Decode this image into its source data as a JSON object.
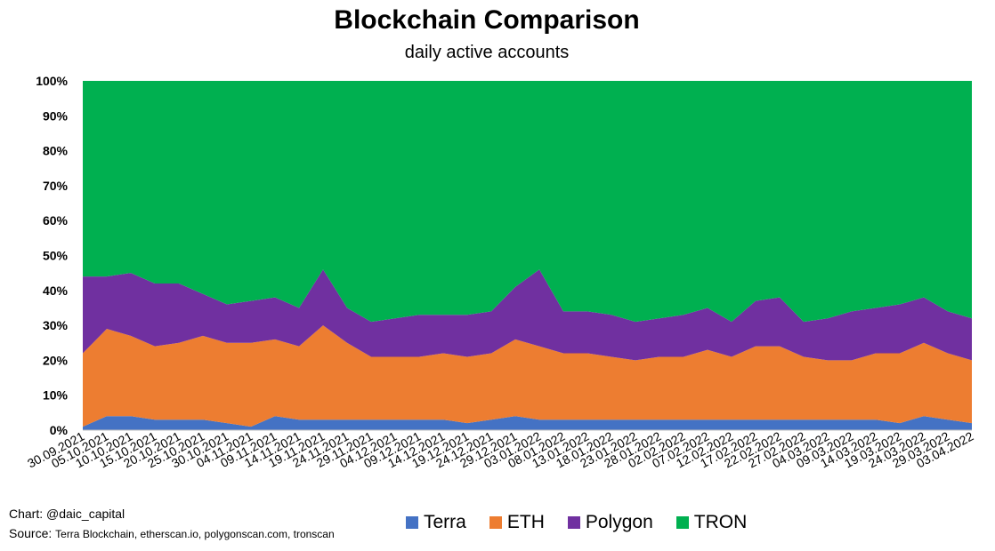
{
  "title": "Blockchain Comparison",
  "subtitle": "daily active accounts",
  "credits": {
    "chart_label": "Chart: @daic_capital",
    "source_label": "Source:",
    "source_text": "Terra Blockchain, etherscan.io, polygonscan.com, tronscan"
  },
  "colors": {
    "Terra": "#4472C4",
    "ETH": "#ED7D31",
    "Polygon": "#7030A0",
    "TRON": "#00B050"
  },
  "chart_data": {
    "type": "area",
    "stacked": true,
    "percent": true,
    "title": "Blockchain Comparison",
    "subtitle": "daily active accounts",
    "ylim": [
      0,
      100
    ],
    "y_ticks": [
      "0%",
      "10%",
      "20%",
      "30%",
      "40%",
      "50%",
      "60%",
      "70%",
      "80%",
      "90%",
      "100%"
    ],
    "x_tick_labels": [
      "30.09.2021",
      "05.10.2021",
      "10.10.2021",
      "15.10.2021",
      "20.10.2021",
      "25.10.2021",
      "30.10.2021",
      "04.11.2021",
      "09.11.2021",
      "14.11.2021",
      "19.11.2021",
      "24.11.2021",
      "29.11.2021",
      "04.12.2021",
      "09.12.2021",
      "14.12.2021",
      "19.12.2021",
      "24.12.2021",
      "29.12.2021",
      "03.01.2022",
      "08.01.2022",
      "13.01.2022",
      "18.01.2022",
      "23.01.2022",
      "28.01.2022",
      "02.02.2022",
      "07.02.2022",
      "12.02.2022",
      "17.02.2022",
      "22.02.2022",
      "27.02.2022",
      "04.03.2022",
      "09.03.2022",
      "14.03.2022",
      "19.03.2022",
      "24.03.2022",
      "29.03.2022",
      "03.04.2022"
    ],
    "legend_position": "bottom",
    "grid": false,
    "x": [
      "30.09.2021",
      "05.10.2021",
      "10.10.2021",
      "15.10.2021",
      "20.10.2021",
      "25.10.2021",
      "30.10.2021",
      "04.11.2021",
      "09.11.2021",
      "14.11.2021",
      "19.11.2021",
      "24.11.2021",
      "29.11.2021",
      "04.12.2021",
      "09.12.2021",
      "14.12.2021",
      "19.12.2021",
      "24.12.2021",
      "29.12.2021",
      "03.01.2022",
      "08.01.2022",
      "13.01.2022",
      "18.01.2022",
      "23.01.2022",
      "28.01.2022",
      "02.02.2022",
      "07.02.2022",
      "12.02.2022",
      "17.02.2022",
      "22.02.2022",
      "27.02.2022",
      "04.03.2022",
      "09.03.2022",
      "14.03.2022",
      "19.03.2022",
      "24.03.2022",
      "29.03.2022",
      "03.04.2022"
    ],
    "series": [
      {
        "name": "Terra",
        "values": [
          1,
          4,
          4,
          3,
          3,
          3,
          2,
          1,
          4,
          3,
          3,
          3,
          3,
          3,
          3,
          3,
          2,
          3,
          4,
          3,
          3,
          3,
          3,
          3,
          3,
          3,
          3,
          3,
          3,
          3,
          3,
          3,
          3,
          3,
          2,
          4,
          3,
          2
        ]
      },
      {
        "name": "ETH",
        "values": [
          21,
          25,
          23,
          21,
          22,
          24,
          23,
          24,
          22,
          21,
          27,
          22,
          18,
          18,
          18,
          19,
          19,
          19,
          22,
          21,
          19,
          19,
          18,
          17,
          18,
          18,
          20,
          18,
          21,
          21,
          18,
          17,
          17,
          19,
          20,
          21,
          19,
          18
        ]
      },
      {
        "name": "Polygon",
        "values": [
          22,
          15,
          18,
          18,
          17,
          12,
          11,
          12,
          12,
          11,
          16,
          10,
          10,
          11,
          12,
          11,
          12,
          12,
          15,
          22,
          12,
          12,
          12,
          11,
          11,
          12,
          12,
          10,
          13,
          14,
          10,
          12,
          14,
          13,
          14,
          13,
          12,
          12
        ]
      },
      {
        "name": "TRON",
        "values": [
          56,
          56,
          55,
          58,
          58,
          61,
          64,
          63,
          62,
          65,
          54,
          65,
          69,
          68,
          67,
          67,
          67,
          66,
          59,
          54,
          66,
          66,
          67,
          69,
          68,
          67,
          65,
          69,
          63,
          62,
          69,
          68,
          66,
          65,
          64,
          62,
          66,
          68
        ]
      }
    ]
  }
}
